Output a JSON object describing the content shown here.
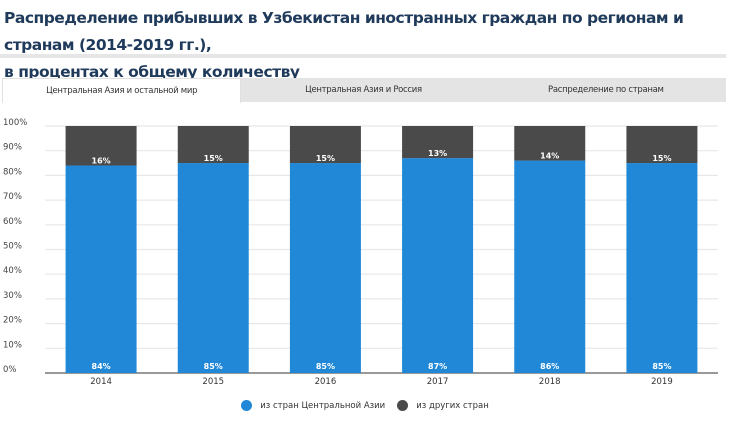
{
  "title_line1": "Распределение прибывших в Узбекистан иностранных граждан по регионам и странам  (2014-2019 гг.),",
  "title_line2": "в процентах к общему количеству",
  "tabs": [
    {
      "label": "Центральная Азия и остальной мир",
      "active": true
    },
    {
      "label": "Центральная Азия и Россия",
      "active": false
    },
    {
      "label": "Распределение по странам",
      "active": false
    }
  ],
  "chart_data": {
    "type": "bar",
    "stacked": true,
    "categories": [
      "2014",
      "2015",
      "2016",
      "2017",
      "2018",
      "2019"
    ],
    "series": [
      {
        "name": "из стран Центральной Азии",
        "values": [
          84,
          85,
          85,
          87,
          86,
          85
        ],
        "color": "#2188d8"
      },
      {
        "name": "из других стран",
        "values": [
          16,
          15,
          15,
          13,
          14,
          15
        ],
        "color": "#4a4a4a"
      }
    ],
    "yticks": [
      "0%",
      "10%",
      "20%",
      "30%",
      "40%",
      "50%",
      "60%",
      "70%",
      "80%",
      "90%",
      "100%"
    ],
    "ylim": [
      0,
      100
    ],
    "grid": true,
    "legend": "bottom"
  }
}
